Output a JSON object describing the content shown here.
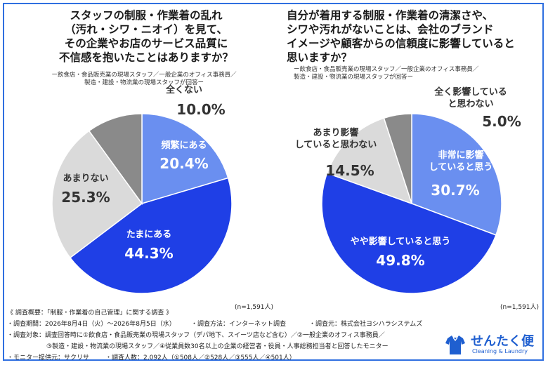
{
  "q1": {
    "title_lines": [
      "スタッフの制服・作業着の乱れ",
      "（汚れ・シワ・ニオイ）を見て、",
      "その企業やお店のサービス品質に",
      "不信感を抱いたことはありますか？"
    ],
    "subtitle_lines": [
      "ー飲食店・食品販売業の現場スタッフ／一般企業のオフィス事務員／",
      "製造・建設・物流業の現場スタッフが回答ー"
    ],
    "n_label": "(n=1,591人)"
  },
  "q2": {
    "title_lines": [
      "自分が着用する制服・作業着の清潔さや、",
      "シワや汚れがないことは、会社のブランド",
      "イメージや顧客からの信頼度に影響していると",
      "思いますか？"
    ],
    "subtitle_lines": [
      "ー飲食店・食品販売業の現場スタッフ／一般企業のオフィス事務員／",
      "製造・建設・物流業の現場スタッフが回答ー"
    ],
    "n_label": "(n=1,591人)"
  },
  "chart_data": [
    {
      "type": "pie",
      "categories": [
        "頻繁にある",
        "たまにある",
        "あまりない",
        "全くない"
      ],
      "values": [
        20.4,
        44.3,
        25.3,
        10.0
      ],
      "value_labels": [
        "20.4%",
        "44.3%",
        "25.3%",
        "10.0%"
      ],
      "colors": [
        "#6a8ff0",
        "#1f3fe6",
        "#dadada",
        "#8a8a8a"
      ]
    },
    {
      "type": "pie",
      "categories": [
        "非常に影響\nしていると思う",
        "やや影響していると思う",
        "あまり影響\nしていると思わない",
        "全く影響している\nと思わない"
      ],
      "values": [
        30.7,
        49.8,
        14.5,
        5.0
      ],
      "value_labels": [
        "30.7%",
        "49.8%",
        "14.5%",
        "5.0%"
      ],
      "colors": [
        "#6a8ff0",
        "#1f3fe6",
        "#dadada",
        "#8a8a8a"
      ]
    }
  ],
  "footer": {
    "line1": "《 調査概要：「制服・作業着の自己管理」に関する調査 》",
    "line2a": "・調査期間：2026年8月4日（火）〜2026年8月5日（水）",
    "line2b": "・調査方法：インターネット調査",
    "line2c": "・調査元：株式会社ヨシハラシステムズ",
    "line3": "・調査対象：調査回答時に①飲食店・食品販売業の現場スタッフ（デパ地下、スイーツ店など含む）／②一般企業のオフィス事務員／",
    "line4": "③製造・建設・物流業の現場スタッフ／④従業員数30名以上の企業の経営者・役員・人事総務担当者と回答したモニター",
    "line5a": "・モニター提供元：サクリサ",
    "line5b": "・調査人数：2,092人（①508人／②528人／③555人／④501人）"
  },
  "logo": {
    "text": "せんたく便",
    "sub": "Cleaning & Laundry",
    "icon": "shirt-icon"
  }
}
